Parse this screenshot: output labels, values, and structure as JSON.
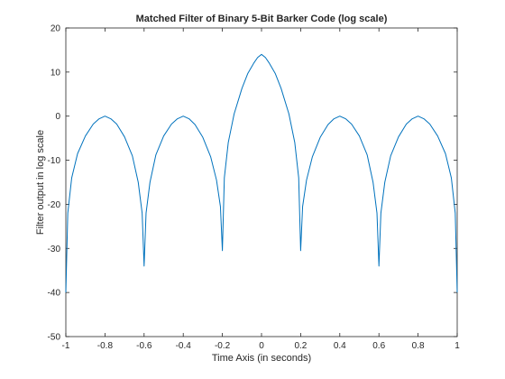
{
  "chart_data": {
    "type": "line",
    "title": "Matched Filter of Binary 5-Bit Barker Code (log scale)",
    "xlabel": "Time Axis (in seconds)",
    "ylabel": "Filter output in log scale",
    "xlim": [
      -1,
      1
    ],
    "ylim": [
      -50,
      20
    ],
    "xticks": [
      -1,
      -0.8,
      -0.6,
      -0.4,
      -0.2,
      0,
      0.2,
      0.4,
      0.6,
      0.8,
      1
    ],
    "xtick_labels": [
      "-1",
      "-0.8",
      "-0.6",
      "-0.4",
      "-0.2",
      "0",
      "0.2",
      "0.4",
      "0.6",
      "0.8",
      "1"
    ],
    "yticks": [
      20,
      10,
      0,
      -10,
      -20,
      -30,
      -40,
      -50
    ],
    "ytick_labels": [
      "20",
      "10",
      "0",
      "-10",
      "-20",
      "-30",
      "-40",
      "-50"
    ],
    "grid": false,
    "series": [
      {
        "color": "#0072bd",
        "x": [
          -1,
          -0.99,
          -0.97,
          -0.94,
          -0.9,
          -0.86,
          -0.83,
          -0.8,
          -0.77,
          -0.74,
          -0.7,
          -0.66,
          -0.63,
          -0.61,
          -0.6,
          -0.59,
          -0.57,
          -0.54,
          -0.5,
          -0.46,
          -0.43,
          -0.4,
          -0.37,
          -0.34,
          -0.3,
          -0.26,
          -0.23,
          -0.21,
          -0.2,
          -0.19,
          -0.17,
          -0.14,
          -0.1,
          -0.07,
          -0.04,
          -0.02,
          0,
          0.02,
          0.04,
          0.07,
          0.1,
          0.14,
          0.17,
          0.19,
          0.2,
          0.21,
          0.23,
          0.26,
          0.3,
          0.34,
          0.37,
          0.4,
          0.43,
          0.46,
          0.5,
          0.54,
          0.57,
          0.59,
          0.6,
          0.61,
          0.63,
          0.66,
          0.7,
          0.74,
          0.77,
          0.8,
          0.83,
          0.86,
          0.9,
          0.94,
          0.97,
          0.99,
          1
        ],
        "y": [
          -40,
          -22,
          -14,
          -8.5,
          -4.5,
          -1.8,
          -0.6,
          0,
          -0.6,
          -1.8,
          -4.7,
          -9,
          -15,
          -22,
          -34,
          -22,
          -15,
          -8.8,
          -4.5,
          -1.8,
          -0.6,
          0,
          -0.6,
          -1.9,
          -4.8,
          -9.2,
          -14.5,
          -20.5,
          -30.5,
          -14,
          -6,
          0.5,
          6.3,
          9.7,
          12,
          13.3,
          14,
          13.3,
          12,
          9.7,
          6.3,
          0.5,
          -6,
          -14,
          -30.5,
          -20.5,
          -14.5,
          -9.2,
          -4.8,
          -1.9,
          -0.6,
          0,
          -0.6,
          -1.8,
          -4.5,
          -8.8,
          -15,
          -22,
          -34,
          -22,
          -15,
          -9,
          -4.7,
          -1.8,
          -0.6,
          0,
          -0.6,
          -1.8,
          -4.5,
          -8.5,
          -14,
          -22,
          -40
        ]
      }
    ]
  }
}
